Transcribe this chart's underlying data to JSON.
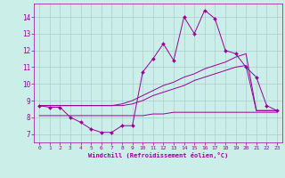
{
  "xlabel": "Windchill (Refroidissement éolien,°C)",
  "background_color": "#cceee8",
  "grid_color": "#aacccc",
  "line_color": "#990099",
  "xlim": [
    -0.5,
    23.5
  ],
  "ylim": [
    6.5,
    14.8
  ],
  "xticks": [
    0,
    1,
    2,
    3,
    4,
    5,
    6,
    7,
    8,
    9,
    10,
    11,
    12,
    13,
    14,
    15,
    16,
    17,
    18,
    19,
    20,
    21,
    22,
    23
  ],
  "yticks": [
    7,
    8,
    9,
    10,
    11,
    12,
    13,
    14
  ],
  "series1_x": [
    0,
    1,
    2,
    3,
    4,
    5,
    6,
    7,
    8,
    9,
    10,
    11,
    12,
    13,
    14,
    15,
    16,
    17,
    18,
    19,
    20,
    21,
    22,
    23
  ],
  "series1_y": [
    8.7,
    8.6,
    8.6,
    8.0,
    7.7,
    7.3,
    7.1,
    7.1,
    7.5,
    7.5,
    10.7,
    11.5,
    12.4,
    11.4,
    14.0,
    13.0,
    14.4,
    13.9,
    12.0,
    11.8,
    11.0,
    10.4,
    8.7,
    8.4
  ],
  "series2_x": [
    0,
    1,
    2,
    3,
    4,
    5,
    6,
    7,
    8,
    9,
    10,
    11,
    12,
    13,
    14,
    15,
    16,
    17,
    18,
    19,
    20,
    21,
    22,
    23
  ],
  "series2_y": [
    8.7,
    8.7,
    8.7,
    8.7,
    8.7,
    8.7,
    8.7,
    8.7,
    8.8,
    9.0,
    9.3,
    9.6,
    9.9,
    10.1,
    10.4,
    10.6,
    10.9,
    11.1,
    11.3,
    11.6,
    11.8,
    8.4,
    8.4,
    8.4
  ],
  "series3_x": [
    0,
    1,
    2,
    3,
    4,
    5,
    6,
    7,
    8,
    9,
    10,
    11,
    12,
    13,
    14,
    15,
    16,
    17,
    18,
    19,
    20,
    21,
    22,
    23
  ],
  "series3_y": [
    8.7,
    8.7,
    8.7,
    8.7,
    8.7,
    8.7,
    8.7,
    8.7,
    8.7,
    8.8,
    9.0,
    9.3,
    9.5,
    9.7,
    9.9,
    10.2,
    10.4,
    10.6,
    10.8,
    11.0,
    11.1,
    8.4,
    8.4,
    8.4
  ],
  "series4_x": [
    0,
    1,
    2,
    3,
    4,
    5,
    6,
    7,
    8,
    9,
    10,
    11,
    12,
    13,
    14,
    15,
    16,
    17,
    18,
    19,
    20,
    21,
    22,
    23
  ],
  "series4_y": [
    8.1,
    8.1,
    8.1,
    8.1,
    8.1,
    8.1,
    8.1,
    8.1,
    8.1,
    8.1,
    8.1,
    8.2,
    8.2,
    8.3,
    8.3,
    8.3,
    8.3,
    8.3,
    8.3,
    8.3,
    8.3,
    8.3,
    8.3,
    8.3
  ]
}
